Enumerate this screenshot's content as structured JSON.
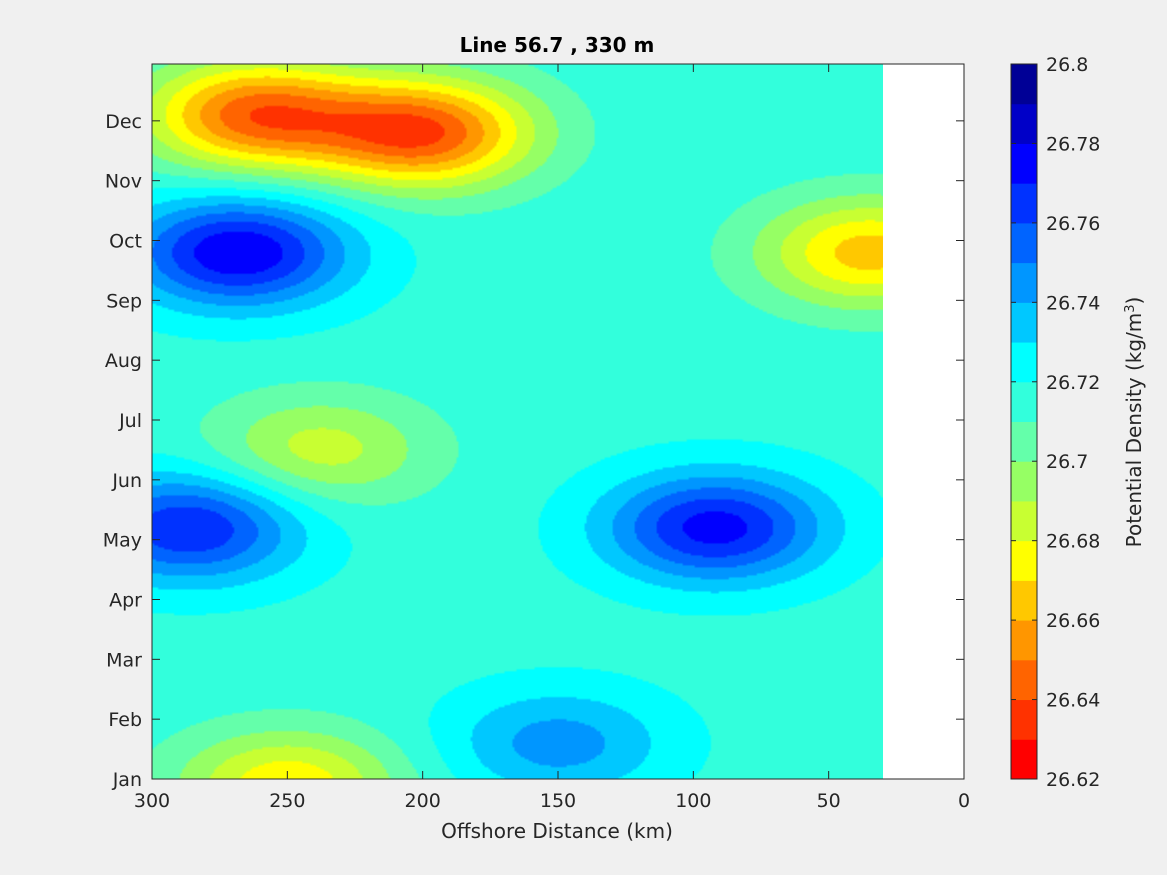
{
  "chart_data": {
    "type": "heatmap",
    "title": "Line 56.7 , 330 m",
    "xlabel": "Offshore Distance (km)",
    "xlim": [
      300,
      0
    ],
    "x_ticks": [
      300,
      250,
      200,
      150,
      100,
      50,
      0
    ],
    "y_ticks": [
      "Jan",
      "Feb",
      "Mar",
      "Apr",
      "May",
      "Jun",
      "Jul",
      "Aug",
      "Sep",
      "Oct",
      "Nov",
      "Dec"
    ],
    "colorbar": {
      "label": "Potential Density (kg/m",
      "label_superscript": "3",
      "label_suffix": ")",
      "range": [
        26.62,
        26.8
      ],
      "ticks": [
        "26.8",
        "26.78",
        "26.76",
        "26.74",
        "26.72",
        "26.7",
        "26.68",
        "26.66",
        "26.64",
        "26.62"
      ],
      "levels_bottom_to_top": [
        "#ff0000",
        "#ff3200",
        "#ff6400",
        "#ff9600",
        "#ffc800",
        "#ffff00",
        "#c8ff32",
        "#96ff64",
        "#64ffaa",
        "#32ffdc",
        "#00ffff",
        "#00c8ff",
        "#0096ff",
        "#0064ff",
        "#0032ff",
        "#0000ff",
        "#0000c8",
        "#000096"
      ]
    },
    "data_extent_km": [
      300,
      30
    ],
    "features": [
      {
        "kind": "max",
        "center_x": 200,
        "center_month": 10.8,
        "value": 26.64
      },
      {
        "kind": "max",
        "center_x": 262,
        "center_month": 11.1,
        "value": 26.645
      },
      {
        "kind": "min",
        "center_x": 268,
        "center_month": 8.8,
        "value": 26.78
      },
      {
        "kind": "min",
        "center_x": 92,
        "center_month": 4.2,
        "value": 26.775
      },
      {
        "kind": "min",
        "center_x": 286,
        "center_month": 4.2,
        "value": 26.77
      },
      {
        "kind": "max",
        "center_x": 238,
        "center_month": 5.5,
        "value": 26.685
      },
      {
        "kind": "max",
        "center_x": 35,
        "center_month": 8.8,
        "value": 26.665
      },
      {
        "kind": "max",
        "center_x": 250,
        "center_month": -0.1,
        "value": 26.672
      },
      {
        "kind": "min",
        "center_x": 150,
        "center_month": 0.6,
        "value": 26.745
      }
    ]
  }
}
